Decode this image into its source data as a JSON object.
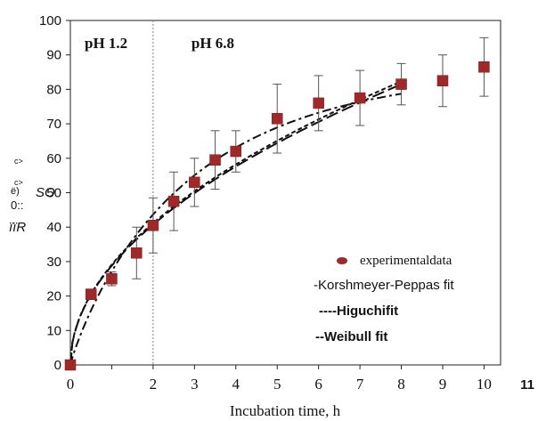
{
  "chart_data": {
    "type": "scatter",
    "title": "",
    "xlabel": "Incubation time, h",
    "ylabel_fragments": [
      "c>",
      "c>",
      "ë)",
      "0::",
      "SO",
      "ïïR"
    ],
    "xlim": [
      0,
      10.4
    ],
    "ylim": [
      0,
      100
    ],
    "x_tick_labels": [
      "0",
      "",
      "2",
      "3",
      "4",
      "5",
      "6",
      "7",
      "8",
      "9",
      "10",
      "11"
    ],
    "y_tick_labels": [
      "0",
      "10",
      "20",
      "30",
      "40",
      "50",
      "60",
      "70",
      "80",
      "90",
      "100"
    ],
    "grid": false,
    "legend_position": "bottom-right",
    "annotations": {
      "phase_divider_x": 2,
      "phase_left": "pH 1.2",
      "phase_right": "pH 6.8"
    },
    "series": [
      {
        "name": "experimentaldata",
        "marker": "square",
        "color": "#a02828",
        "x": [
          0,
          0.5,
          1,
          1.6,
          2,
          2.5,
          3,
          3.5,
          4,
          5,
          6,
          7,
          8,
          9,
          10
        ],
        "y": [
          0,
          20.5,
          25,
          32.5,
          40.5,
          47.5,
          53,
          59.5,
          62,
          71.5,
          76,
          77.5,
          81.5,
          82.5,
          86.5
        ],
        "error": [
          0,
          1.5,
          2,
          7.5,
          8,
          8.5,
          7,
          8.5,
          6,
          10,
          8,
          8,
          6,
          7.5,
          8.5
        ]
      },
      {
        "name": "Korshmeyer-Peppas fit",
        "style": "long-dash",
        "model": "power",
        "k": 28.8,
        "n": 0.5,
        "x_range": [
          0,
          8
        ]
      },
      {
        "name": "Higuchifit",
        "style": "short-dash",
        "model": "power",
        "k": 29.1,
        "n": 0.5,
        "x_range": [
          0,
          8
        ]
      },
      {
        "name": "Weibull fit",
        "style": "dash-dot",
        "model": "weibull",
        "a": 86,
        "b": 0.38,
        "c": 0.9,
        "x_range": [
          0,
          8
        ]
      }
    ],
    "legend": [
      {
        "label": "experimentaldata",
        "style": "serif"
      },
      {
        "label": "-Korshmeyer-Peppas fit",
        "style": "sans"
      },
      {
        "label": "----Higuchifit",
        "style": "bold"
      },
      {
        "label": "--Weibull fit",
        "style": "bold"
      }
    ]
  }
}
